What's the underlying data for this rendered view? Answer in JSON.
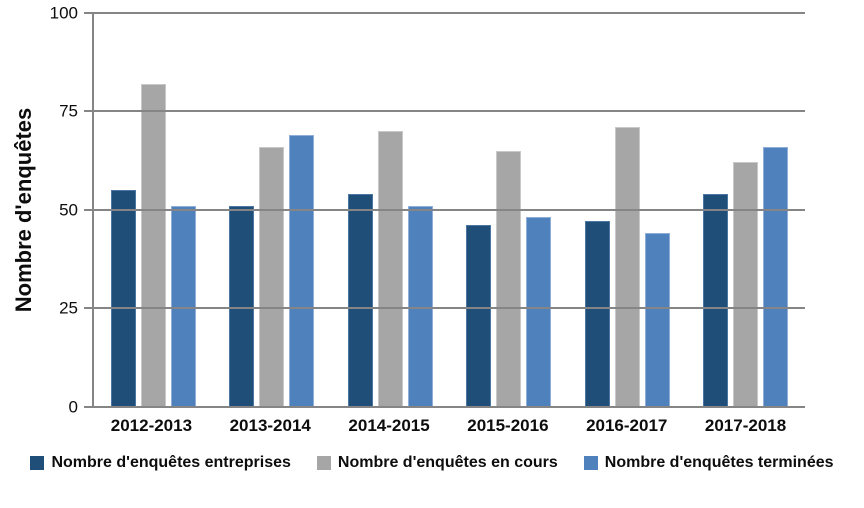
{
  "chart_data": {
    "type": "bar",
    "title": "",
    "ylabel": "Nombre d'enquêtes",
    "xlabel": "",
    "categories": [
      "2012-2013",
      "2013-2014",
      "2014-2015",
      "2015-2016",
      "2016-2017",
      "2017-2018"
    ],
    "series": [
      {
        "name": "Nombre d'enquêtes entreprises",
        "color": "#1F4E79",
        "border_color": "#4C77A3",
        "values": [
          55,
          51,
          54,
          46,
          47,
          54
        ]
      },
      {
        "name": "Nombre d'enquêtes en cours",
        "color": "#A6A6A6",
        "border_color": "#C8C8C8",
        "values": [
          82,
          66,
          70,
          65,
          71,
          62
        ]
      },
      {
        "name": "Nombre d'enquêtes terminées",
        "color": "#4F81BD",
        "border_color": "#8FAFD8",
        "values": [
          51,
          69,
          51,
          48,
          44,
          66
        ]
      }
    ],
    "ylim": [
      0,
      100
    ],
    "yticks": [
      0,
      25,
      50,
      75,
      100
    ],
    "grid": true,
    "legend_position": "bottom"
  },
  "colors": {
    "gridline": "#858585",
    "text": "#0d0d0d",
    "background": "#ffffff"
  }
}
